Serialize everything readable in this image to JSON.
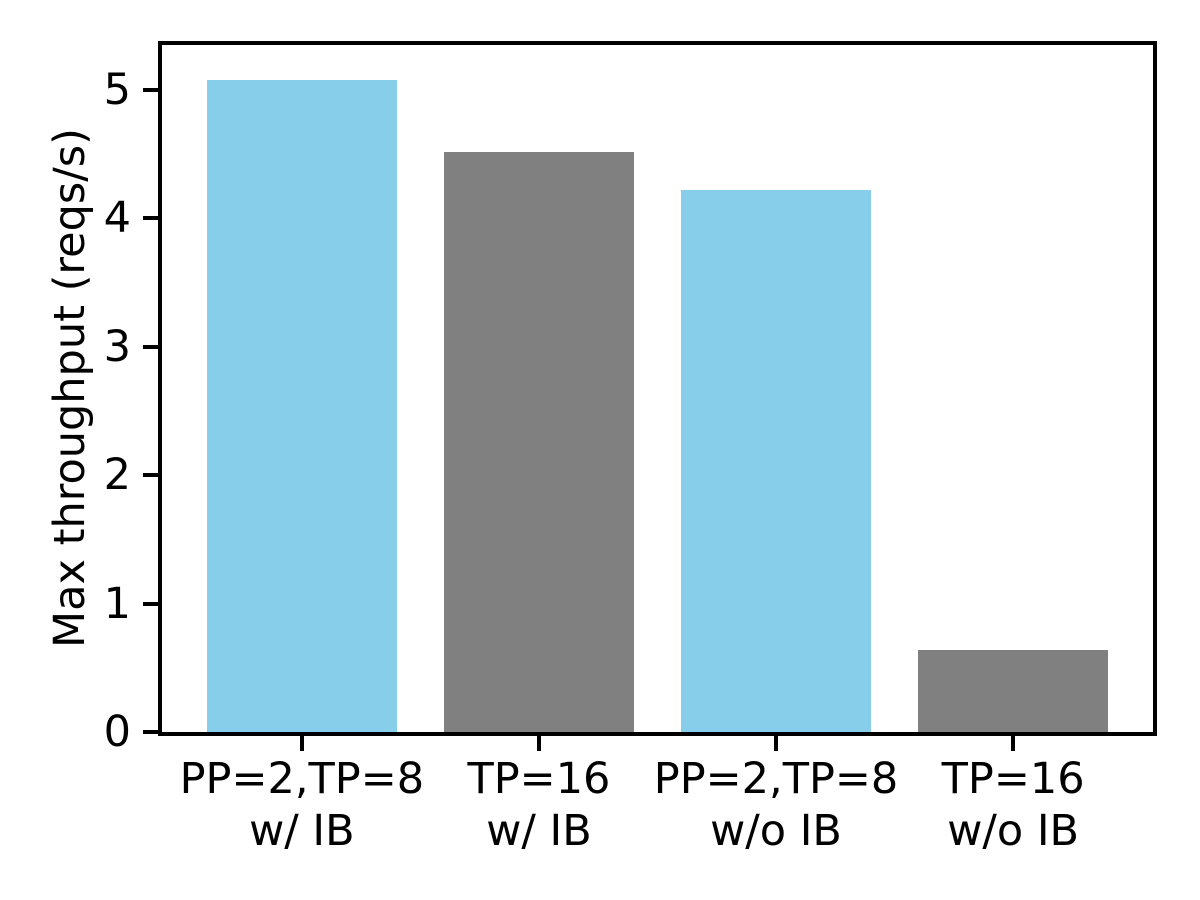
{
  "figure": {
    "background": "#ffffff",
    "axis_color": "#000000",
    "text_color": "#000000"
  },
  "chart_data": {
    "type": "bar",
    "title": "",
    "xlabel": "",
    "ylabel": "Max throughput (reqs/s)",
    "categories": [
      "PP=2,TP=8\nw/ IB",
      "TP=16\nw/ IB",
      "PP=2,TP=8\nw/o IB",
      "TP=16\nw/o IB"
    ],
    "category_lines": [
      [
        "PP=2,TP=8",
        "w/ IB"
      ],
      [
        "TP=16",
        "w/ IB"
      ],
      [
        "PP=2,TP=8",
        "w/o IB"
      ],
      [
        "TP=16",
        "w/o IB"
      ]
    ],
    "values": [
      5.08,
      4.52,
      4.22,
      0.64
    ],
    "bar_colors": [
      "#87CEEB",
      "#808080",
      "#87CEEB",
      "#808080"
    ],
    "bar_color_names": [
      "skyblue",
      "gray",
      "skyblue",
      "gray"
    ],
    "yticks": [
      0,
      1,
      2,
      3,
      4,
      5
    ],
    "ylim": [
      0,
      5.35
    ],
    "xlim": [
      -0.59,
      3.59
    ],
    "bar_width": 0.8,
    "grid": false,
    "legend": "none"
  }
}
